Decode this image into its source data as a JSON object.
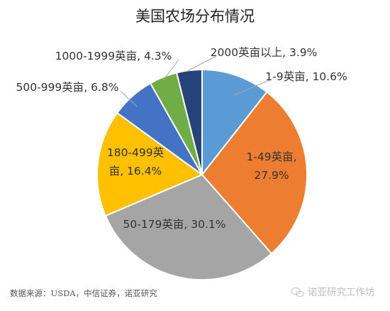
{
  "chart_data": {
    "type": "pie",
    "title": "美国农场分布情况",
    "slices": [
      {
        "category": "1-9英亩",
        "value": 10.6,
        "label": "1-9英亩, 10.6%",
        "color": "#5b9bd5"
      },
      {
        "category": "1-49英亩",
        "value": 27.9,
        "label": "1-49英亩, 27.9%",
        "color": "#ed7d31"
      },
      {
        "category": "50-179英亩",
        "value": 30.1,
        "label": "50-179英亩, 30.1%",
        "color": "#a5a5a5"
      },
      {
        "category": "180-499英亩",
        "value": 16.4,
        "label": "180-499英亩, 16.4%",
        "color": "#ffc000"
      },
      {
        "category": "500-999英亩",
        "value": 6.8,
        "label": "500-999英亩, 6.8%",
        "color": "#4472c4"
      },
      {
        "category": "1000-1999英亩",
        "value": 4.3,
        "label": "1000-1999英亩, 4.3%",
        "color": "#70ad47"
      },
      {
        "category": "2000英亩以上",
        "value": 3.9,
        "label": "2000英亩以上, 3.9%",
        "color": "#264478"
      }
    ],
    "label_lines": {
      "180-499英亩": [
        "180-499英",
        "亩, 16.4%"
      ],
      "1-49英亩": [
        "1-49英亩,",
        "27.9%"
      ]
    },
    "leader_line_color": "#a6a6a6"
  },
  "source": "数据来源：USDA，中信证券，诺亚研究",
  "watermark": "诺亚研究工作坊"
}
